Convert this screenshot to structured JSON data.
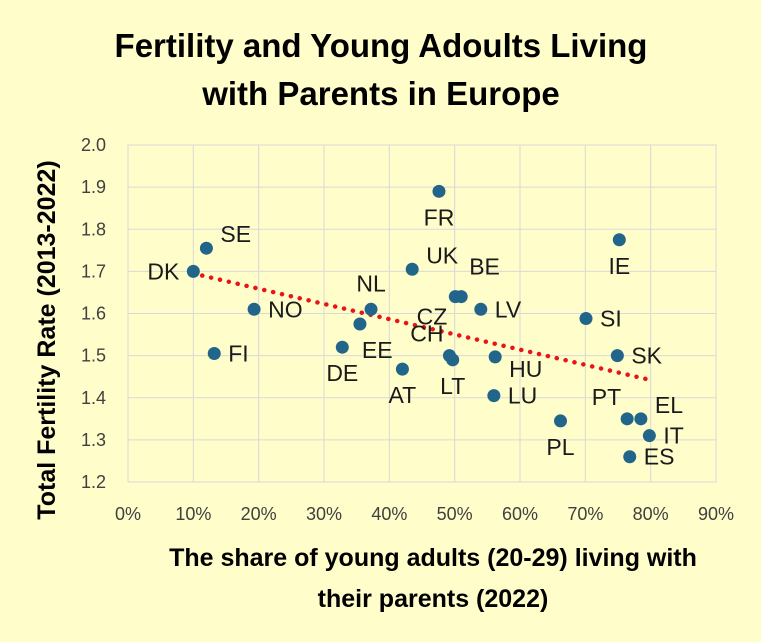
{
  "chart_data": {
    "type": "scatter",
    "title_lines": [
      "Fertility and Young Adoults Living",
      "with Parents in Europe"
    ],
    "xlabel_lines": [
      "The share of young adults (20-29) living with",
      "their parents  (2022)"
    ],
    "ylabel": "Total Fertility Rate (2013-2022)",
    "xlim": [
      0,
      90
    ],
    "ylim": [
      1.2,
      2.0
    ],
    "x_ticks": [
      0,
      10,
      20,
      30,
      40,
      50,
      60,
      70,
      80,
      90
    ],
    "x_tick_labels": [
      "0%",
      "10%",
      "20%",
      "30%",
      "40%",
      "50%",
      "60%",
      "70%",
      "80%",
      "90%"
    ],
    "y_ticks": [
      1.2,
      1.3,
      1.4,
      1.5,
      1.6,
      1.7,
      1.8,
      1.9,
      2.0
    ],
    "y_tick_labels": [
      "1.2",
      "1.3",
      "1.4",
      "1.5",
      "1.6",
      "1.7",
      "1.8",
      "1.9",
      "2.0"
    ],
    "grid": true,
    "colors": {
      "point": "#21658a",
      "trend": "#e8141a",
      "background": "#fffdc9",
      "grid": "#d9d9d9"
    },
    "points": [
      {
        "label": "DK",
        "x": 10.0,
        "y": 1.7,
        "label_pos": "left"
      },
      {
        "label": "SE",
        "x": 12.0,
        "y": 1.755,
        "label_pos": "right-up"
      },
      {
        "label": "FI",
        "x": 13.2,
        "y": 1.505,
        "label_pos": "right"
      },
      {
        "label": "NO",
        "x": 19.3,
        "y": 1.61,
        "label_pos": "right"
      },
      {
        "label": "DE",
        "x": 32.8,
        "y": 1.52,
        "label_pos": "below"
      },
      {
        "label": "EE",
        "x": 35.5,
        "y": 1.575,
        "label_pos": "below-right"
      },
      {
        "label": "NL",
        "x": 37.2,
        "y": 1.61,
        "label_pos": "above"
      },
      {
        "label": "AT",
        "x": 42.0,
        "y": 1.468,
        "label_pos": "below"
      },
      {
        "label": "UK",
        "x": 43.5,
        "y": 1.705,
        "label_pos": "right-up"
      },
      {
        "label": "FR",
        "x": 47.6,
        "y": 1.89,
        "label_pos": "below"
      },
      {
        "label": "CZ",
        "x": 50.1,
        "y": 1.64,
        "label_pos": "below-left"
      },
      {
        "label": "BE",
        "x": 51.0,
        "y": 1.64,
        "label_pos": "above-right"
      },
      {
        "label": "CH",
        "x": 49.2,
        "y": 1.5,
        "label_pos": "above-left"
      },
      {
        "label": "LT",
        "x": 49.7,
        "y": 1.49,
        "label_pos": "below"
      },
      {
        "label": "LV",
        "x": 54.0,
        "y": 1.61,
        "label_pos": "right"
      },
      {
        "label": "HU",
        "x": 56.2,
        "y": 1.497,
        "label_pos": "right-down"
      },
      {
        "label": "LU",
        "x": 56.0,
        "y": 1.405,
        "label_pos": "right"
      },
      {
        "label": "PL",
        "x": 66.2,
        "y": 1.345,
        "label_pos": "below"
      },
      {
        "label": "SI",
        "x": 70.1,
        "y": 1.588,
        "label_pos": "right"
      },
      {
        "label": "IE",
        "x": 75.2,
        "y": 1.775,
        "label_pos": "below"
      },
      {
        "label": "SK",
        "x": 74.9,
        "y": 1.5,
        "label_pos": "right"
      },
      {
        "label": "PT",
        "x": 76.4,
        "y": 1.35,
        "label_pos": "above-left"
      },
      {
        "label": "EL",
        "x": 78.5,
        "y": 1.35,
        "label_pos": "right-up"
      },
      {
        "label": "IT",
        "x": 79.8,
        "y": 1.31,
        "label_pos": "right"
      },
      {
        "label": "ES",
        "x": 76.8,
        "y": 1.26,
        "label_pos": "right"
      }
    ],
    "trendline": {
      "x": [
        10,
        80
      ],
      "y": [
        1.695,
        1.442
      ]
    }
  }
}
